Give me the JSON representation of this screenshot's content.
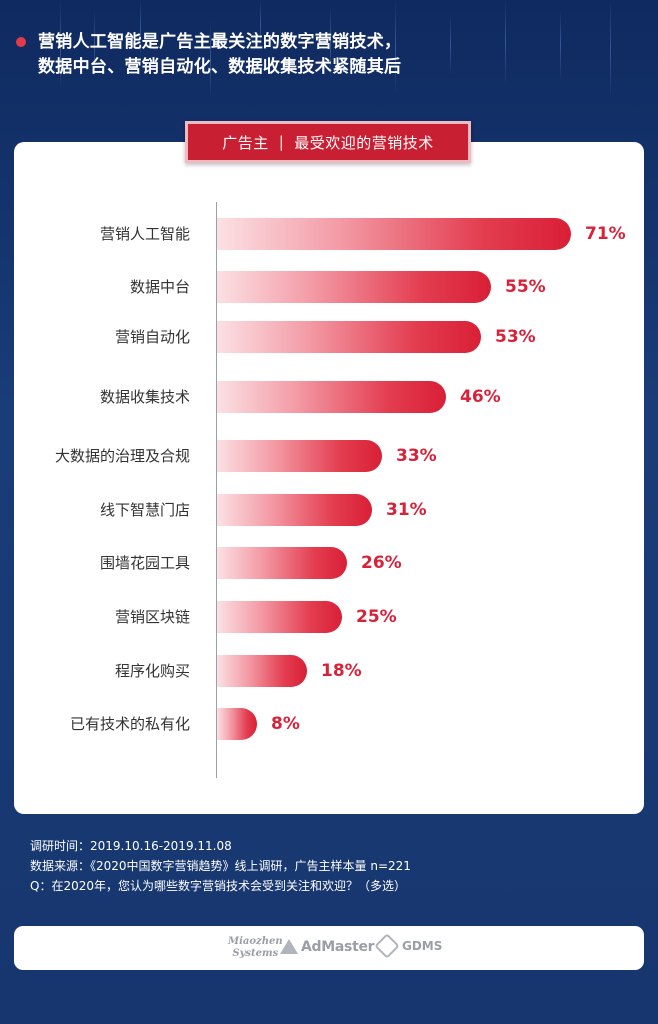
{
  "headline": {
    "line1": "营销人工智能是广告主最关注的数字营销技术，",
    "line2": "数据中台、营销自动化、数据收集技术紧随其后"
  },
  "card_title": {
    "left": "广告主",
    "separator": "|",
    "right": "最受欢迎的营销技术"
  },
  "chart_data": {
    "type": "bar",
    "orientation": "horizontal",
    "categories": [
      "营销人工智能",
      "数据中台",
      "营销自动化",
      "数据收集技术",
      "大数据的治理及合规",
      "线下智慧门店",
      "围墙花园工具",
      "营销区块链",
      "程序化购买",
      "已有技术的私有化"
    ],
    "values": [
      71,
      55,
      53,
      46,
      33,
      31,
      26,
      25,
      18,
      8
    ],
    "value_labels": [
      "71%",
      "55%",
      "53%",
      "46%",
      "33%",
      "31%",
      "26%",
      "25%",
      "18%",
      "8%"
    ],
    "xlim": [
      0,
      100
    ],
    "grid": false,
    "colors": {
      "bar_start": "#fbe1e4",
      "bar_end": "#d91f36",
      "label": "#d7223a"
    }
  },
  "notes": {
    "survey_time": "调研时间：2019.10.16-2019.11.08",
    "source": "数据来源：《2020中国数字营销趋势》线上调研，广告主样本量 n=221",
    "question": "Q：在2020年，您认为哪些数字营销技术会受到关注和欢迎？（多选）"
  },
  "logos": {
    "miaozhen_top": "Miaozhen",
    "miaozhen_bottom": "Systems",
    "admaster": "AdMaster",
    "gdms": "GDMS"
  },
  "colors": {
    "background": "#15336b",
    "accent": "#c81f32"
  }
}
